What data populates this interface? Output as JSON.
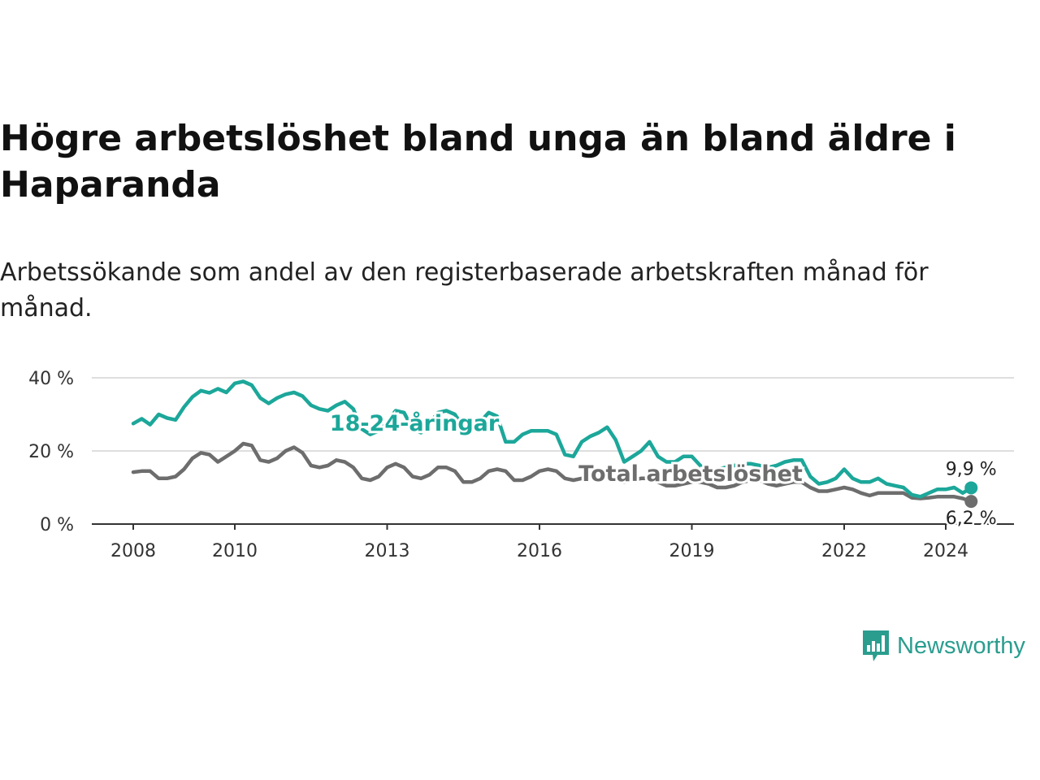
{
  "title": "Högre arbetslöshet bland unga än bland äldre i Haparanda",
  "subtitle": "Arbetssökande som andel av den registerbaserade arbetskraften månad för månad.",
  "brand": "Newsworthy",
  "colors": {
    "youth": "#1ca79a",
    "total": "#6d6d6d",
    "brand": "#2a9d8f"
  },
  "chart_data": {
    "type": "line",
    "y_ticks": [
      "0 %",
      "20 %",
      "40 %"
    ],
    "x_ticks": [
      "2008",
      "2010",
      "2013",
      "2016",
      "2019",
      "2022",
      "2024"
    ],
    "ylim": [
      0,
      40
    ],
    "xlim": [
      "2008-01",
      "2024-07"
    ],
    "grid": true,
    "series": [
      {
        "name": "18-24-åringar",
        "end_label": "9,9 %",
        "values": [
          [
            "2008-01",
            27.5
          ],
          [
            "2008-03",
            28.8
          ],
          [
            "2008-05",
            27.2
          ],
          [
            "2008-07",
            30
          ],
          [
            "2008-09",
            29
          ],
          [
            "2008-11",
            28.5
          ],
          [
            "2009-01",
            32
          ],
          [
            "2009-03",
            34.8
          ],
          [
            "2009-05",
            36.5
          ],
          [
            "2009-07",
            35.9
          ],
          [
            "2009-09",
            37
          ],
          [
            "2009-11",
            36
          ],
          [
            "2010-01",
            38.5
          ],
          [
            "2010-03",
            39
          ],
          [
            "2010-05",
            38
          ],
          [
            "2010-07",
            34.5
          ],
          [
            "2010-09",
            33
          ],
          [
            "2010-11",
            34.5
          ],
          [
            "2011-01",
            35.5
          ],
          [
            "2011-03",
            36
          ],
          [
            "2011-05",
            35
          ],
          [
            "2011-07",
            32.5
          ],
          [
            "2011-09",
            31.5
          ],
          [
            "2011-11",
            31
          ],
          [
            "2012-01",
            32.5
          ],
          [
            "2012-03",
            33.5
          ],
          [
            "2012-05",
            31.5
          ],
          [
            "2012-07",
            26
          ],
          [
            "2012-09",
            24.5
          ],
          [
            "2012-11",
            25.5
          ],
          [
            "2013-01",
            28
          ],
          [
            "2013-03",
            31
          ],
          [
            "2013-05",
            30.5
          ],
          [
            "2013-07",
            26
          ],
          [
            "2013-09",
            25
          ],
          [
            "2013-11",
            27.5
          ],
          [
            "2014-01",
            30.5
          ],
          [
            "2014-03",
            31
          ],
          [
            "2014-05",
            30
          ],
          [
            "2014-07",
            26.5
          ],
          [
            "2014-09",
            25.5
          ],
          [
            "2014-11",
            28
          ],
          [
            "2015-01",
            30.5
          ],
          [
            "2015-03",
            29.5
          ],
          [
            "2015-05",
            22.5
          ],
          [
            "2015-07",
            22.5
          ],
          [
            "2015-09",
            24.5
          ],
          [
            "2015-11",
            25.5
          ],
          [
            "2016-01",
            25.5
          ],
          [
            "2016-03",
            25.5
          ],
          [
            "2016-05",
            24.5
          ],
          [
            "2016-07",
            19
          ],
          [
            "2016-09",
            18.5
          ],
          [
            "2016-11",
            22.5
          ],
          [
            "2017-01",
            24
          ],
          [
            "2017-03",
            25
          ],
          [
            "2017-05",
            26.5
          ],
          [
            "2017-07",
            23
          ],
          [
            "2017-09",
            17
          ],
          [
            "2017-11",
            18.5
          ],
          [
            "2018-01",
            20
          ],
          [
            "2018-03",
            22.5
          ],
          [
            "2018-05",
            18.5
          ],
          [
            "2018-07",
            17
          ],
          [
            "2018-09",
            17
          ],
          [
            "2018-11",
            18.5
          ],
          [
            "2019-01",
            18.5
          ],
          [
            "2019-03",
            16
          ],
          [
            "2019-05",
            15
          ],
          [
            "2019-07",
            15
          ],
          [
            "2019-09",
            15.5
          ],
          [
            "2019-11",
            16
          ],
          [
            "2020-01",
            16.5
          ],
          [
            "2020-03",
            16.5
          ],
          [
            "2020-05",
            16
          ],
          [
            "2020-07",
            15.5
          ],
          [
            "2020-09",
            16
          ],
          [
            "2020-11",
            17
          ],
          [
            "2021-01",
            17.5
          ],
          [
            "2021-03",
            17.5
          ],
          [
            "2021-05",
            13
          ],
          [
            "2021-07",
            11
          ],
          [
            "2021-09",
            11.5
          ],
          [
            "2021-11",
            12.5
          ],
          [
            "2022-01",
            15
          ],
          [
            "2022-03",
            12.5
          ],
          [
            "2022-05",
            11.5
          ],
          [
            "2022-07",
            11.5
          ],
          [
            "2022-09",
            12.5
          ],
          [
            "2022-11",
            11
          ],
          [
            "2023-01",
            10.5
          ],
          [
            "2023-03",
            10
          ],
          [
            "2023-05",
            8
          ],
          [
            "2023-07",
            7.5
          ],
          [
            "2023-09",
            8.5
          ],
          [
            "2023-11",
            9.5
          ],
          [
            "2024-01",
            9.5
          ],
          [
            "2024-03",
            10
          ],
          [
            "2024-05",
            8.5
          ],
          [
            "2024-07",
            9.9
          ]
        ]
      },
      {
        "name": "Total arbetslöshet",
        "end_label": "6,2 %",
        "values": [
          [
            "2008-01",
            14.2
          ],
          [
            "2008-03",
            14.5
          ],
          [
            "2008-05",
            14.5
          ],
          [
            "2008-07",
            12.5
          ],
          [
            "2008-09",
            12.5
          ],
          [
            "2008-11",
            13
          ],
          [
            "2009-01",
            15
          ],
          [
            "2009-03",
            18
          ],
          [
            "2009-05",
            19.5
          ],
          [
            "2009-07",
            19
          ],
          [
            "2009-09",
            17
          ],
          [
            "2009-11",
            18.5
          ],
          [
            "2010-01",
            20
          ],
          [
            "2010-03",
            22
          ],
          [
            "2010-05",
            21.5
          ],
          [
            "2010-07",
            17.5
          ],
          [
            "2010-09",
            17
          ],
          [
            "2010-11",
            18
          ],
          [
            "2011-01",
            20
          ],
          [
            "2011-03",
            21
          ],
          [
            "2011-05",
            19.5
          ],
          [
            "2011-07",
            16
          ],
          [
            "2011-09",
            15.5
          ],
          [
            "2011-11",
            16
          ],
          [
            "2012-01",
            17.5
          ],
          [
            "2012-03",
            17
          ],
          [
            "2012-05",
            15.5
          ],
          [
            "2012-07",
            12.5
          ],
          [
            "2012-09",
            12
          ],
          [
            "2012-11",
            13
          ],
          [
            "2013-01",
            15.5
          ],
          [
            "2013-03",
            16.5
          ],
          [
            "2013-05",
            15.5
          ],
          [
            "2013-07",
            13
          ],
          [
            "2013-09",
            12.5
          ],
          [
            "2013-11",
            13.5
          ],
          [
            "2014-01",
            15.5
          ],
          [
            "2014-03",
            15.5
          ],
          [
            "2014-05",
            14.5
          ],
          [
            "2014-07",
            11.5
          ],
          [
            "2014-09",
            11.5
          ],
          [
            "2014-11",
            12.5
          ],
          [
            "2015-01",
            14.5
          ],
          [
            "2015-03",
            15
          ],
          [
            "2015-05",
            14.5
          ],
          [
            "2015-07",
            12
          ],
          [
            "2015-09",
            12
          ],
          [
            "2015-11",
            13
          ],
          [
            "2016-01",
            14.5
          ],
          [
            "2016-03",
            15
          ],
          [
            "2016-05",
            14.5
          ],
          [
            "2016-07",
            12.5
          ],
          [
            "2016-09",
            12
          ],
          [
            "2016-11",
            12.5
          ],
          [
            "2017-01",
            13.5
          ],
          [
            "2017-03",
            14
          ],
          [
            "2017-05",
            13.5
          ],
          [
            "2017-07",
            12
          ],
          [
            "2017-09",
            11.5
          ],
          [
            "2017-11",
            12
          ],
          [
            "2018-01",
            12.5
          ],
          [
            "2018-03",
            12.5
          ],
          [
            "2018-05",
            11.5
          ],
          [
            "2018-07",
            10.5
          ],
          [
            "2018-09",
            10.5
          ],
          [
            "2018-11",
            11
          ],
          [
            "2019-01",
            11.5
          ],
          [
            "2019-03",
            11.5
          ],
          [
            "2019-05",
            11
          ],
          [
            "2019-07",
            10
          ],
          [
            "2019-09",
            10
          ],
          [
            "2019-11",
            10.5
          ],
          [
            "2020-01",
            11.5
          ],
          [
            "2020-03",
            12
          ],
          [
            "2020-05",
            12
          ],
          [
            "2020-07",
            11
          ],
          [
            "2020-09",
            10.5
          ],
          [
            "2020-11",
            11
          ],
          [
            "2021-01",
            11.5
          ],
          [
            "2021-03",
            11.5
          ],
          [
            "2021-05",
            10
          ],
          [
            "2021-07",
            9
          ],
          [
            "2021-09",
            9
          ],
          [
            "2021-11",
            9.5
          ],
          [
            "2022-01",
            10
          ],
          [
            "2022-03",
            9.5
          ],
          [
            "2022-05",
            8.5
          ],
          [
            "2022-07",
            7.8
          ],
          [
            "2022-09",
            8.5
          ],
          [
            "2022-11",
            8.5
          ],
          [
            "2023-01",
            8.5
          ],
          [
            "2023-03",
            8.5
          ],
          [
            "2023-05",
            7.2
          ],
          [
            "2023-07",
            7
          ],
          [
            "2023-09",
            7.2
          ],
          [
            "2023-11",
            7.5
          ],
          [
            "2024-01",
            7.5
          ],
          [
            "2024-03",
            7.5
          ],
          [
            "2024-05",
            7
          ],
          [
            "2024-07",
            6.2
          ]
        ]
      }
    ]
  }
}
